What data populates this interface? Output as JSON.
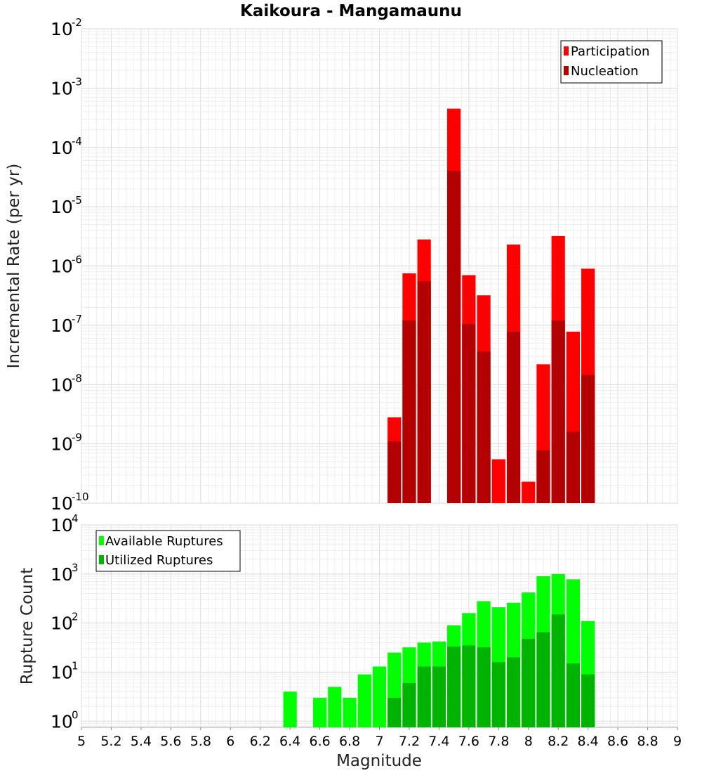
{
  "chart_data": [
    {
      "type": "bar",
      "title": "Kaikoura - Mangamaunu",
      "xlabel": "Magnitude",
      "ylabel": "Incremental Rate (per yr)",
      "yscale": "log",
      "ylim": [
        1e-10,
        0.01
      ],
      "xlim": [
        5,
        9
      ],
      "grid": true,
      "legend_position": "top-right",
      "x": [
        7.1,
        7.2,
        7.3,
        7.5,
        7.6,
        7.7,
        7.8,
        7.9,
        8.0,
        8.1,
        8.2,
        8.3,
        8.4
      ],
      "series": [
        {
          "name": "Participation",
          "color": "#ff0000",
          "values": [
            2.8e-09,
            7.5e-07,
            2.8e-06,
            0.00045,
            7e-07,
            3.2e-07,
            5.5e-10,
            2.3e-06,
            2.3e-10,
            2.2e-08,
            3.2e-06,
            7.8e-08,
            9e-07
          ]
        },
        {
          "name": "Nucleation",
          "color": "#b30000",
          "values": [
            1.1e-09,
            1.2e-07,
            5.5e-07,
            4e-05,
            1.05e-07,
            3.6e-08,
            null,
            7.8e-08,
            null,
            7.8e-10,
            1.2e-07,
            1.6e-09,
            1.45e-08
          ]
        }
      ]
    },
    {
      "type": "bar",
      "xlabel": "Magnitude",
      "ylabel": "Rupture Count",
      "yscale": "log",
      "ylim": [
        0.75,
        10000
      ],
      "xlim": [
        5,
        9
      ],
      "grid": true,
      "legend_position": "top-left",
      "x": [
        6.4,
        6.6,
        6.7,
        6.8,
        6.9,
        7.0,
        7.1,
        7.2,
        7.3,
        7.4,
        7.5,
        7.6,
        7.7,
        7.8,
        7.9,
        8.0,
        8.1,
        8.2,
        8.3,
        8.4
      ],
      "series": [
        {
          "name": "Available Ruptures",
          "color": "#00ff00",
          "values": [
            4,
            3,
            5,
            3,
            9,
            13,
            25,
            32,
            40,
            42,
            90,
            160,
            280,
            210,
            260,
            420,
            900,
            1000,
            780,
            110
          ]
        },
        {
          "name": "Utilized Ruptures",
          "color": "#00b300",
          "values": [
            null,
            null,
            null,
            null,
            null,
            null,
            3,
            6,
            13,
            13,
            33,
            35,
            32,
            16,
            20,
            48,
            65,
            150,
            15,
            9
          ]
        }
      ]
    }
  ],
  "ticks": {
    "x": [
      "5",
      "5.2",
      "5.4",
      "5.6",
      "5.8",
      "6",
      "6.2",
      "6.4",
      "6.6",
      "6.8",
      "7",
      "7.2",
      "7.4",
      "7.6",
      "7.8",
      "8",
      "8.2",
      "8.4",
      "8.6",
      "8.8",
      "9"
    ],
    "top_y_exponents": [
      "-10",
      "-9",
      "-8",
      "-7",
      "-6",
      "-5",
      "-4",
      "-3",
      "-2"
    ],
    "bottom_y_exponents": [
      "0",
      "1",
      "2",
      "3",
      "4"
    ],
    "y_base": "10"
  }
}
